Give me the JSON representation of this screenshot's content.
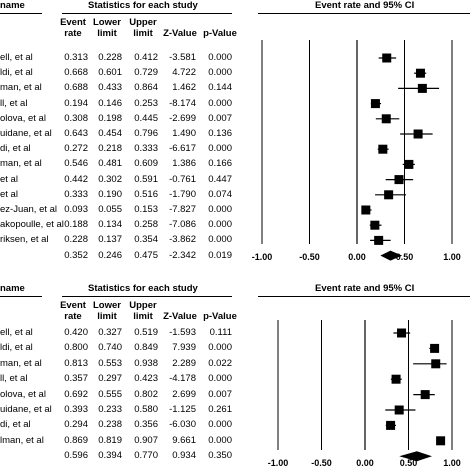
{
  "headers": {
    "study_name": "name",
    "stats_title": "Statistics for each study",
    "plot_title": "Event rate and 95% CI",
    "col_event_rate": [
      "Event",
      "rate"
    ],
    "col_lower_limit": [
      "Lower",
      "limit"
    ],
    "col_upper_limit": [
      "Upper",
      "limit"
    ],
    "col_z": "Z-Value",
    "col_p": "p-Value"
  },
  "axis_ticks": [
    "-1.00",
    "-0.50",
    "0.00",
    "0.50",
    "1.00"
  ],
  "chart_data": [
    {
      "type": "forest",
      "xlim": [
        -1.0,
        1.0
      ],
      "marker_color": "#000000",
      "rows": [
        {
          "study": "ell, et al",
          "event_rate": "0.313",
          "lower": "0.228",
          "upper": "0.412",
          "z": "-3.581",
          "p": "0.000"
        },
        {
          "study": "ldi, et al",
          "event_rate": "0.668",
          "lower": "0.601",
          "upper": "0.729",
          "z": "4.722",
          "p": "0.000"
        },
        {
          "study": "man, et al",
          "event_rate": "0.688",
          "lower": "0.433",
          "upper": "0.864",
          "z": "1.462",
          "p": "0.144"
        },
        {
          "study": "ll, et al",
          "event_rate": "0.194",
          "lower": "0.146",
          "upper": "0.253",
          "z": "-8.174",
          "p": "0.000"
        },
        {
          "study": "olova, et al",
          "event_rate": "0.308",
          "lower": "0.198",
          "upper": "0.445",
          "z": "-2.699",
          "p": "0.007"
        },
        {
          "study": "uidane, et al",
          "event_rate": "0.643",
          "lower": "0.454",
          "upper": "0.796",
          "z": "1.490",
          "p": "0.136"
        },
        {
          "study": "di, et al",
          "event_rate": "0.272",
          "lower": "0.218",
          "upper": "0.333",
          "z": "-6.617",
          "p": "0.000"
        },
        {
          "study": "man, et al",
          "event_rate": "0.546",
          "lower": "0.481",
          "upper": "0.609",
          "z": "1.386",
          "p": "0.166"
        },
        {
          "study": "et al",
          "event_rate": "0.442",
          "lower": "0.302",
          "upper": "0.591",
          "z": "-0.761",
          "p": "0.447"
        },
        {
          "study": "et al",
          "event_rate": "0.333",
          "lower": "0.190",
          "upper": "0.516",
          "z": "-1.790",
          "p": "0.074"
        },
        {
          "study": "ez-Juan, et al",
          "event_rate": "0.093",
          "lower": "0.055",
          "upper": "0.153",
          "z": "-7.827",
          "p": "0.000"
        },
        {
          "study": "akopoulle, et al",
          "event_rate": "0.188",
          "lower": "0.134",
          "upper": "0.258",
          "z": "-7.086",
          "p": "0.000"
        },
        {
          "study": "riksen, et al",
          "event_rate": "0.228",
          "lower": "0.137",
          "upper": "0.354",
          "z": "-3.862",
          "p": "0.000"
        }
      ],
      "summary": {
        "event_rate": "0.352",
        "lower": "0.246",
        "upper": "0.475",
        "z": "-2.342",
        "p": "0.019"
      }
    },
    {
      "type": "forest",
      "xlim": [
        -1.0,
        1.0
      ],
      "marker_color": "#000000",
      "rows": [
        {
          "study": "ell, et al",
          "event_rate": "0.420",
          "lower": "0.327",
          "upper": "0.519",
          "z": "-1.593",
          "p": "0.111"
        },
        {
          "study": "ldi, et al",
          "event_rate": "0.800",
          "lower": "0.740",
          "upper": "0.849",
          "z": "7.939",
          "p": "0.000"
        },
        {
          "study": "man, et al",
          "event_rate": "0.813",
          "lower": "0.553",
          "upper": "0.938",
          "z": "2.289",
          "p": "0.022"
        },
        {
          "study": "ll, et al",
          "event_rate": "0.357",
          "lower": "0.297",
          "upper": "0.423",
          "z": "-4.178",
          "p": "0.000"
        },
        {
          "study": "olova, et al",
          "event_rate": "0.692",
          "lower": "0.555",
          "upper": "0.802",
          "z": "2.699",
          "p": "0.007"
        },
        {
          "study": "uidane, et al",
          "event_rate": "0.393",
          "lower": "0.233",
          "upper": "0.580",
          "z": "-1.125",
          "p": "0.261"
        },
        {
          "study": "di, et al",
          "event_rate": "0.294",
          "lower": "0.238",
          "upper": "0.356",
          "z": "-6.030",
          "p": "0.000"
        },
        {
          "study": "lman, et al",
          "event_rate": "0.869",
          "lower": "0.819",
          "upper": "0.907",
          "z": "9.661",
          "p": "0.000"
        }
      ],
      "summary": {
        "event_rate": "0.596",
        "lower": "0.394",
        "upper": "0.770",
        "z": "0.934",
        "p": "0.350"
      }
    }
  ]
}
